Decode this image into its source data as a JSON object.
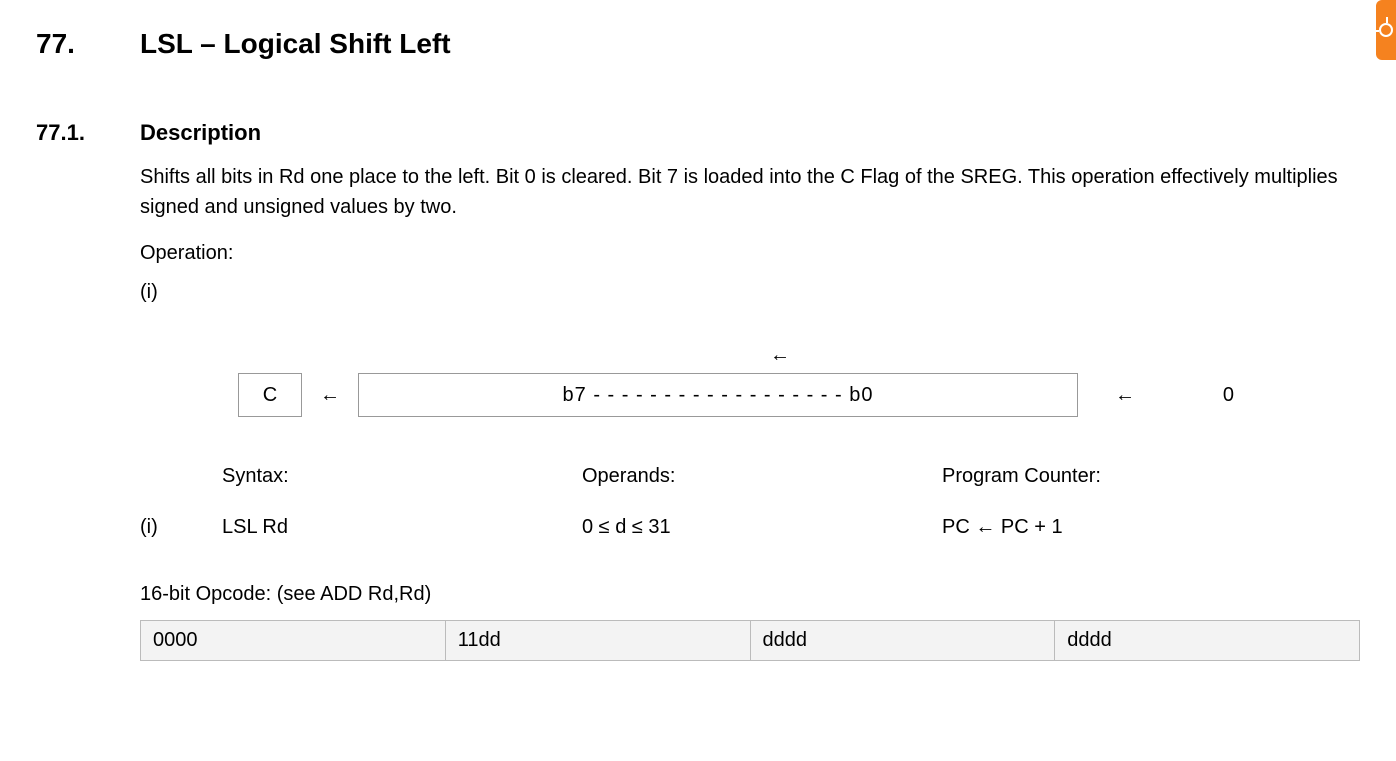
{
  "section": {
    "number": "77.",
    "title": "LSL – Logical Shift Left"
  },
  "subsection": {
    "number": "77.1.",
    "title": "Description"
  },
  "description_text": "Shifts all bits in Rd one place to the left. Bit 0 is cleared. Bit 7 is loaded into the C Flag of the SREG. This operation effectively multiplies signed and unsigned values by two.",
  "operation_label": "Operation:",
  "operation_index": "(i)",
  "diagram": {
    "top_arrow": "←",
    "c_label": "C",
    "arrow1": "←",
    "register_text": "b7 - - - - - - - - - - - - - - - - - - b0",
    "arrow2": "←",
    "zero": "0",
    "box_border_color": "#999999",
    "font_size": 20
  },
  "syntax_table": {
    "headers": {
      "syntax": "Syntax:",
      "operands": "Operands:",
      "pc": "Program Counter:"
    },
    "row": {
      "index": "(i)",
      "syntax": "LSL Rd",
      "operands": "0 ≤ d ≤ 31",
      "pc": "PC ← PC + 1"
    }
  },
  "opcode": {
    "label": "16-bit Opcode: (see ADD Rd,Rd)",
    "cells": [
      "0000",
      "11dd",
      "dddd",
      "dddd"
    ],
    "bg_color": "#f3f3f3",
    "border_color": "#bbbbbb"
  },
  "corner_tab_color": "#f5821f"
}
